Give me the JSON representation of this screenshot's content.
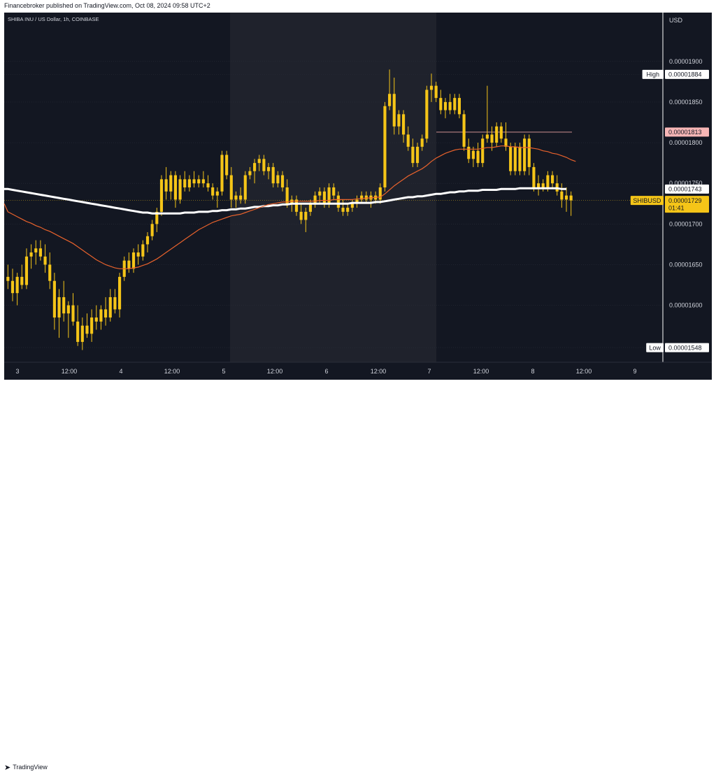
{
  "header": {
    "published_text": "Financebroker published on TradingView.com, Oct 08, 2024 09:58 UTC+2"
  },
  "chart_info": {
    "symbol_title": "SHIBA INU / US Dollar, 1h, COINBASE",
    "currency": "USD"
  },
  "footer": {
    "logo_text": "TradingView",
    "logo_icon": "tradingview-logo-icon"
  },
  "colors": {
    "background": "#131722",
    "shaded_session": "#1f222c",
    "candle": "#f5c518",
    "ema_fast": "#e8622c",
    "ma_slow": "#ffffff",
    "grid": "#2a2e39",
    "resistance_line": "#e8a0a0"
  },
  "chart_data": {
    "type": "candlestick",
    "title": "SHIBA INU / US Dollar, 1h, COINBASE",
    "y_unit": "USD",
    "ylim": [
      1.53e-05,
      1.96e-05
    ],
    "y_ticks": [
      "0.00001900",
      "0.00001850",
      "0.00001800",
      "0.00001750",
      "0.00001700",
      "0.00001650",
      "0.00001600"
    ],
    "x_ticks": [
      "3",
      "12:00",
      "4",
      "12:00",
      "5",
      "12:00",
      "6",
      "12:00",
      "7",
      "12:00",
      "8",
      "12:00",
      "9"
    ],
    "markers": [
      {
        "label": "High",
        "value": "0.00001884",
        "style": "light"
      },
      {
        "label": "",
        "value": "0.00001813",
        "style": "red"
      },
      {
        "label": "",
        "value": "0.00001743",
        "style": "white"
      },
      {
        "label": "SHIBUSD",
        "value": "0.00001729",
        "sub": "01:41",
        "style": "yellow"
      },
      {
        "label": "Low",
        "value": "0.00001548",
        "style": "light"
      }
    ],
    "candles": [
      [
        1.635,
        1.65,
        1.62,
        1.63
      ],
      [
        1.63,
        1.645,
        1.605,
        1.615
      ],
      [
        1.615,
        1.64,
        1.6,
        1.635
      ],
      [
        1.635,
        1.65,
        1.62,
        1.625
      ],
      [
        1.625,
        1.67,
        1.62,
        1.66
      ],
      [
        1.66,
        1.675,
        1.645,
        1.665
      ],
      [
        1.665,
        1.68,
        1.65,
        1.67
      ],
      [
        1.67,
        1.68,
        1.655,
        1.66
      ],
      [
        1.66,
        1.675,
        1.64,
        1.65
      ],
      [
        1.65,
        1.665,
        1.62,
        1.63
      ],
      [
        1.63,
        1.64,
        1.57,
        1.585
      ],
      [
        1.585,
        1.62,
        1.56,
        1.61
      ],
      [
        1.61,
        1.63,
        1.58,
        1.59
      ],
      [
        1.59,
        1.605,
        1.56,
        1.6
      ],
      [
        1.6,
        1.615,
        1.575,
        1.58
      ],
      [
        1.58,
        1.6,
        1.55,
        1.555
      ],
      [
        1.555,
        1.585,
        1.545,
        1.575
      ],
      [
        1.575,
        1.59,
        1.56,
        1.565
      ],
      [
        1.565,
        1.595,
        1.555,
        1.585
      ],
      [
        1.585,
        1.6,
        1.57,
        1.58
      ],
      [
        1.58,
        1.6,
        1.57,
        1.595
      ],
      [
        1.595,
        1.61,
        1.575,
        1.585
      ],
      [
        1.585,
        1.62,
        1.58,
        1.61
      ],
      [
        1.61,
        1.62,
        1.59,
        1.595
      ],
      [
        1.595,
        1.64,
        1.585,
        1.635
      ],
      [
        1.635,
        1.66,
        1.63,
        1.655
      ],
      [
        1.655,
        1.665,
        1.64,
        1.645
      ],
      [
        1.645,
        1.67,
        1.64,
        1.665
      ],
      [
        1.665,
        1.675,
        1.65,
        1.66
      ],
      [
        1.66,
        1.68,
        1.655,
        1.675
      ],
      [
        1.675,
        1.69,
        1.665,
        1.685
      ],
      [
        1.685,
        1.705,
        1.68,
        1.7
      ],
      [
        1.7,
        1.72,
        1.69,
        1.715
      ],
      [
        1.715,
        1.76,
        1.71,
        1.755
      ],
      [
        1.755,
        1.77,
        1.73,
        1.74
      ],
      [
        1.74,
        1.765,
        1.73,
        1.76
      ],
      [
        1.76,
        1.765,
        1.72,
        1.73
      ],
      [
        1.73,
        1.76,
        1.725,
        1.755
      ],
      [
        1.755,
        1.765,
        1.74,
        1.745
      ],
      [
        1.745,
        1.76,
        1.74,
        1.755
      ],
      [
        1.755,
        1.765,
        1.745,
        1.75
      ],
      [
        1.75,
        1.76,
        1.745,
        1.755
      ],
      [
        1.755,
        1.765,
        1.745,
        1.75
      ],
      [
        1.75,
        1.76,
        1.74,
        1.745
      ],
      [
        1.745,
        1.75,
        1.73,
        1.735
      ],
      [
        1.735,
        1.745,
        1.72,
        1.74
      ],
      [
        1.74,
        1.79,
        1.735,
        1.785
      ],
      [
        1.785,
        1.79,
        1.755,
        1.76
      ],
      [
        1.76,
        1.77,
        1.72,
        1.73
      ],
      [
        1.73,
        1.74,
        1.72,
        1.735
      ],
      [
        1.735,
        1.745,
        1.725,
        1.73
      ],
      [
        1.73,
        1.765,
        1.725,
        1.76
      ],
      [
        1.76,
        1.77,
        1.755,
        1.765
      ],
      [
        1.765,
        1.78,
        1.75,
        1.775
      ],
      [
        1.775,
        1.785,
        1.765,
        1.78
      ],
      [
        1.78,
        1.785,
        1.76,
        1.765
      ],
      [
        1.765,
        1.775,
        1.755,
        1.77
      ],
      [
        1.77,
        1.775,
        1.745,
        1.75
      ],
      [
        1.75,
        1.765,
        1.745,
        1.76
      ],
      [
        1.76,
        1.765,
        1.74,
        1.745
      ],
      [
        1.745,
        1.755,
        1.72,
        1.725
      ],
      [
        1.725,
        1.735,
        1.715,
        1.73
      ],
      [
        1.73,
        1.735,
        1.71,
        1.715
      ],
      [
        1.715,
        1.725,
        1.7,
        1.705
      ],
      [
        1.705,
        1.72,
        1.69,
        1.715
      ],
      [
        1.715,
        1.73,
        1.71,
        1.725
      ],
      [
        1.725,
        1.74,
        1.72,
        1.735
      ],
      [
        1.735,
        1.745,
        1.725,
        1.74
      ],
      [
        1.74,
        1.745,
        1.72,
        1.725
      ],
      [
        1.725,
        1.75,
        1.72,
        1.745
      ],
      [
        1.745,
        1.75,
        1.73,
        1.735
      ],
      [
        1.735,
        1.74,
        1.715,
        1.72
      ],
      [
        1.72,
        1.73,
        1.71,
        1.715
      ],
      [
        1.715,
        1.725,
        1.71,
        1.72
      ],
      [
        1.72,
        1.73,
        1.715,
        1.725
      ],
      [
        1.725,
        1.735,
        1.72,
        1.73
      ],
      [
        1.73,
        1.74,
        1.725,
        1.735
      ],
      [
        1.735,
        1.74,
        1.725,
        1.73
      ],
      [
        1.73,
        1.74,
        1.72,
        1.735
      ],
      [
        1.735,
        1.74,
        1.725,
        1.73
      ],
      [
        1.73,
        1.75,
        1.725,
        1.745
      ],
      [
        1.745,
        1.85,
        1.74,
        1.845
      ],
      [
        1.845,
        1.89,
        1.84,
        1.86
      ],
      [
        1.86,
        1.88,
        1.81,
        1.82
      ],
      [
        1.82,
        1.84,
        1.81,
        1.835
      ],
      [
        1.835,
        1.84,
        1.8,
        1.81
      ],
      [
        1.81,
        1.82,
        1.79,
        1.795
      ],
      [
        1.795,
        1.805,
        1.77,
        1.775
      ],
      [
        1.775,
        1.8,
        1.77,
        1.795
      ],
      [
        1.795,
        1.81,
        1.79,
        1.805
      ],
      [
        1.805,
        1.87,
        1.8,
        1.865
      ],
      [
        1.865,
        1.885,
        1.85,
        1.87
      ],
      [
        1.87,
        1.875,
        1.85,
        1.855
      ],
      [
        1.855,
        1.865,
        1.835,
        1.84
      ],
      [
        1.84,
        1.855,
        1.83,
        1.85
      ],
      [
        1.85,
        1.86,
        1.835,
        1.84
      ],
      [
        1.84,
        1.86,
        1.835,
        1.855
      ],
      [
        1.855,
        1.86,
        1.83,
        1.835
      ],
      [
        1.835,
        1.84,
        1.79,
        1.795
      ],
      [
        1.795,
        1.805,
        1.775,
        1.78
      ],
      [
        1.78,
        1.795,
        1.77,
        1.79
      ],
      [
        1.79,
        1.8,
        1.77,
        1.775
      ],
      [
        1.775,
        1.81,
        1.77,
        1.805
      ],
      [
        1.805,
        1.87,
        1.8,
        1.81
      ],
      [
        1.81,
        1.82,
        1.79,
        1.8
      ],
      [
        1.8,
        1.825,
        1.795,
        1.82
      ],
      [
        1.82,
        1.825,
        1.8,
        1.805
      ],
      [
        1.805,
        1.825,
        1.79,
        1.795
      ],
      [
        1.795,
        1.8,
        1.76,
        1.765
      ],
      [
        1.765,
        1.8,
        1.76,
        1.795
      ],
      [
        1.795,
        1.8,
        1.76,
        1.765
      ],
      [
        1.765,
        1.81,
        1.76,
        1.805
      ],
      [
        1.805,
        1.81,
        1.76,
        1.77
      ],
      [
        1.77,
        1.775,
        1.74,
        1.745
      ],
      [
        1.745,
        1.76,
        1.735,
        1.75
      ],
      [
        1.75,
        1.755,
        1.74,
        1.745
      ],
      [
        1.745,
        1.765,
        1.74,
        1.76
      ],
      [
        1.76,
        1.765,
        1.745,
        1.75
      ],
      [
        1.75,
        1.76,
        1.735,
        1.74
      ],
      [
        1.74,
        1.75,
        1.72,
        1.73
      ],
      [
        1.73,
        1.745,
        1.715,
        1.735
      ],
      [
        1.735,
        1.74,
        1.71,
        1.729
      ]
    ],
    "ema_fast": [
      1.715,
      1.712,
      1.709,
      1.706,
      1.703,
      1.701,
      1.698,
      1.696,
      1.693,
      1.691,
      1.688,
      1.685,
      1.682,
      1.679,
      1.676,
      1.672,
      1.668,
      1.664,
      1.66,
      1.656,
      1.653,
      1.65,
      1.648,
      1.646,
      1.645,
      1.645,
      1.645,
      1.646,
      1.647,
      1.649,
      1.651,
      1.654,
      1.657,
      1.661,
      1.665,
      1.669,
      1.673,
      1.677,
      1.681,
      1.685,
      1.689,
      1.693,
      1.696,
      1.699,
      1.702,
      1.704,
      1.706,
      1.708,
      1.71,
      1.711,
      1.712,
      1.714,
      1.716,
      1.718,
      1.72,
      1.722,
      1.724,
      1.725,
      1.726,
      1.727,
      1.727,
      1.728,
      1.728,
      1.728,
      1.728,
      1.728,
      1.728,
      1.729,
      1.729,
      1.729,
      1.73,
      1.73,
      1.73,
      1.73,
      1.73,
      1.731,
      1.731,
      1.732,
      1.732,
      1.733,
      1.733,
      1.737,
      1.742,
      1.747,
      1.751,
      1.755,
      1.759,
      1.762,
      1.765,
      1.768,
      1.772,
      1.777,
      1.781,
      1.784,
      1.787,
      1.789,
      1.791,
      1.792,
      1.792,
      1.792,
      1.792,
      1.792,
      1.793,
      1.794,
      1.794,
      1.795,
      1.796,
      1.796,
      1.795,
      1.795,
      1.794,
      1.794,
      1.794,
      1.793,
      1.792,
      1.79,
      1.789,
      1.787,
      1.786,
      1.784,
      1.782,
      1.779,
      1.777
    ],
    "ma_slow": [
      1.743,
      1.742,
      1.741,
      1.74,
      1.739,
      1.738,
      1.737,
      1.736,
      1.735,
      1.734,
      1.733,
      1.732,
      1.731,
      1.73,
      1.729,
      1.728,
      1.727,
      1.726,
      1.725,
      1.724,
      1.723,
      1.722,
      1.721,
      1.72,
      1.719,
      1.718,
      1.717,
      1.716,
      1.715,
      1.714,
      1.714,
      1.713,
      1.713,
      1.713,
      1.713,
      1.713,
      1.713,
      1.713,
      1.714,
      1.714,
      1.714,
      1.715,
      1.715,
      1.715,
      1.716,
      1.716,
      1.717,
      1.717,
      1.718,
      1.718,
      1.719,
      1.719,
      1.72,
      1.721,
      1.721,
      1.722,
      1.722,
      1.723,
      1.723,
      1.724,
      1.724,
      1.725,
      1.725,
      1.725,
      1.725,
      1.725,
      1.725,
      1.725,
      1.725,
      1.725,
      1.725,
      1.725,
      1.725,
      1.725,
      1.726,
      1.726,
      1.726,
      1.726,
      1.726,
      1.727,
      1.727,
      1.728,
      1.729,
      1.73,
      1.731,
      1.732,
      1.733,
      1.733,
      1.734,
      1.734,
      1.735,
      1.736,
      1.737,
      1.737,
      1.738,
      1.739,
      1.739,
      1.74,
      1.74,
      1.741,
      1.741,
      1.741,
      1.742,
      1.742,
      1.742,
      1.742,
      1.743,
      1.743,
      1.743,
      1.743,
      1.744,
      1.744,
      1.744,
      1.744,
      1.744,
      1.744,
      1.744,
      1.744,
      1.744,
      1.743,
      1.743
    ],
    "resistance_level": 1.813,
    "support_level": 1.548
  }
}
